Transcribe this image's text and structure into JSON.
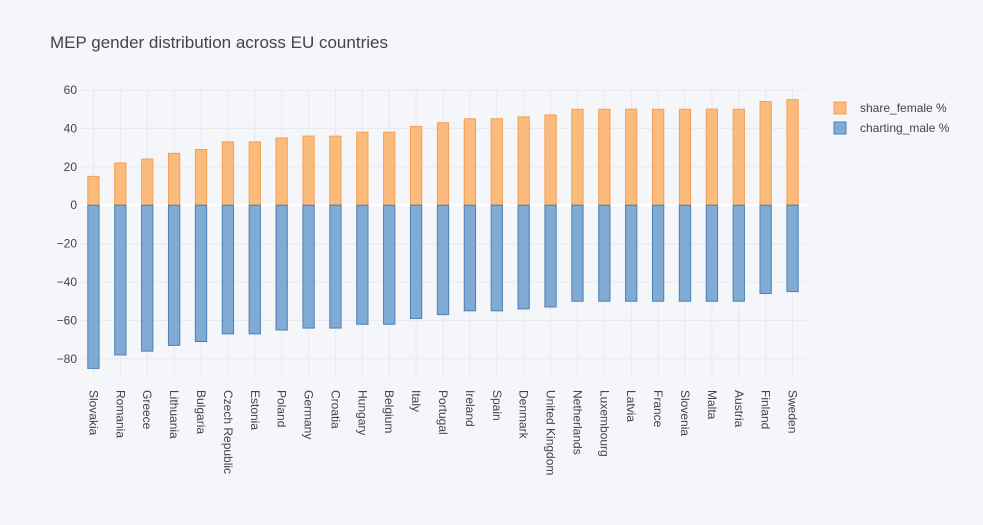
{
  "chart_data": {
    "type": "bar",
    "title": "MEP gender distribution across EU countries",
    "xlabel": "",
    "ylabel": "",
    "ylim": [
      -90,
      60
    ],
    "yticks": [
      -80,
      -60,
      -40,
      -20,
      0,
      20,
      40,
      60
    ],
    "ytick_labels": [
      "−80",
      "−60",
      "−40",
      "−20",
      "0",
      "20",
      "40",
      "60"
    ],
    "grid": true,
    "legend_position": "top-right",
    "categories": [
      "Slovakia",
      "Romania",
      "Greece",
      "Lithuania",
      "Bulgaria",
      "Czech Republic",
      "Estonia",
      "Poland",
      "Germany",
      "Croatia",
      "Hungary",
      "Belgium",
      "Italy",
      "Portugal",
      "Ireland",
      "Spain",
      "Denmark",
      "United Kingdom",
      "Netherlands",
      "Luxembourg",
      "Latvia",
      "France",
      "Slovenia",
      "Malta",
      "Austria",
      "Finland",
      "Sweden"
    ],
    "series": [
      {
        "name": "share_female %",
        "color": "#fbbb7c",
        "edge_color": "#f5a051",
        "values": [
          15,
          22,
          24,
          27,
          29,
          33,
          33,
          35,
          36,
          36,
          38,
          38,
          41,
          43,
          45,
          45,
          46,
          47,
          50,
          50,
          50,
          50,
          50,
          50,
          50,
          54,
          55
        ]
      },
      {
        "name": "charting_male %",
        "color": "#80abd4",
        "edge_color": "#4c7fb5",
        "values": [
          -85,
          -78,
          -76,
          -73,
          -71,
          -67,
          -67,
          -65,
          -64,
          -64,
          -62,
          -62,
          -59,
          -57,
          -55,
          -55,
          -54,
          -53,
          -50,
          -50,
          -50,
          -50,
          -50,
          -50,
          -50,
          -46,
          -45
        ]
      }
    ]
  }
}
